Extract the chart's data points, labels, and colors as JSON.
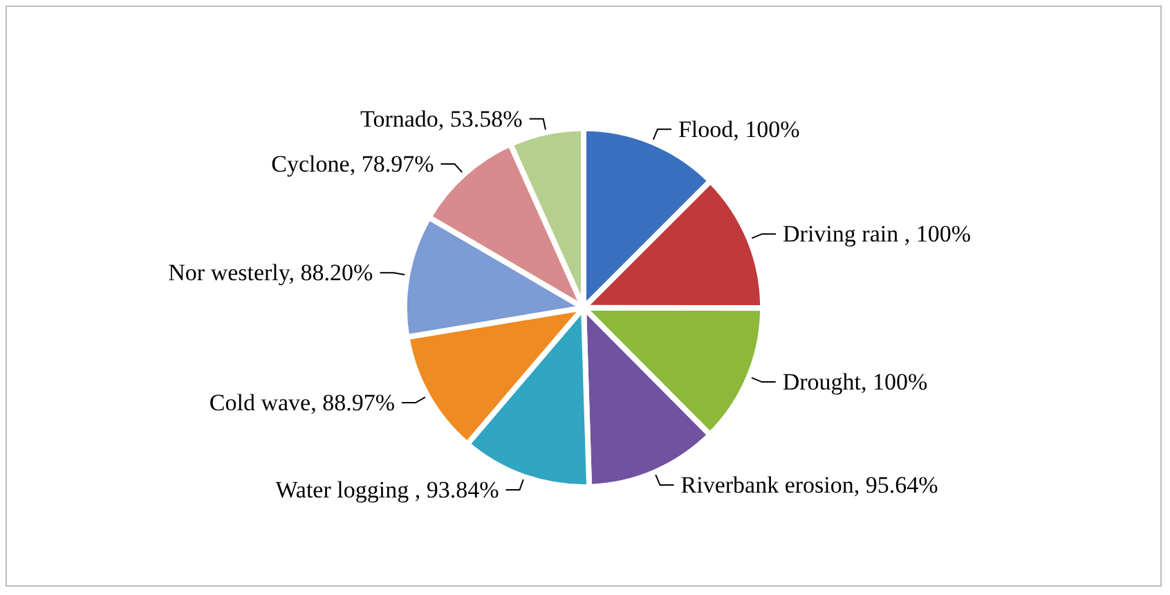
{
  "chart_data": {
    "type": "pie",
    "categories": [
      "Flood",
      "Driving rain ",
      "Drought",
      "Riverbank erosion",
      "Water logging ",
      "Cold wave",
      "Nor westerly",
      "Cyclone",
      "Tornado"
    ],
    "values": [
      100,
      100,
      100,
      95.64,
      93.84,
      88.97,
      88.2,
      78.97,
      53.58
    ],
    "value_labels": [
      "100%",
      "100%",
      "100%",
      "95.64%",
      "93.84%",
      "88.97%",
      "88.20%",
      "78.97%",
      "53.58%"
    ],
    "colors": [
      "#3a6fc0",
      "#c0393b",
      "#8db83a",
      "#7152a0",
      "#31a5c2",
      "#f08a22",
      "#7d9bd4",
      "#d88b8c",
      "#b5d08e"
    ],
    "legend": false
  }
}
